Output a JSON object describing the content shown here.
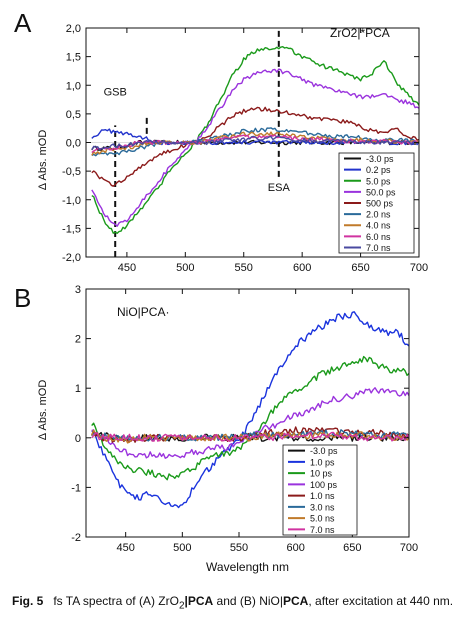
{
  "caption": {
    "fig_label": "Fig. 5",
    "pre": "fs TA spectra of (A) ZrO",
    "sub2": "2",
    "bar1": "|",
    "pca1": "PCA",
    "mid": " and (B) NiO|",
    "pca2": "PCA",
    "post": ", after excitation at 440 nm."
  },
  "chart_data": [
    {
      "type": "line",
      "panel_label": "A",
      "inset_label": "ZrO2|*PCA",
      "ylabel": "Δ Abs. mOD",
      "xlabel": "",
      "xlim": [
        415,
        700
      ],
      "ylim": [
        -2.0,
        2.0
      ],
      "xticks": [
        450,
        500,
        550,
        600,
        650,
        700
      ],
      "yticks": [
        -2.0,
        -1.5,
        -1.0,
        -0.5,
        0.0,
        0.5,
        1.0,
        1.5,
        2.0
      ],
      "ytick_labels": [
        "-2,0",
        "-1,5",
        "-1,0",
        "-0,5",
        "0,0",
        "0,5",
        "1,0",
        "1,5",
        "2,0"
      ],
      "annotations": [
        {
          "text": "GSB",
          "x": 440,
          "y": 0.82
        },
        {
          "text": "ESA",
          "x": 580,
          "y": -0.85
        }
      ],
      "markers": [
        {
          "x": 440,
          "from": -2.0,
          "to": 0.3,
          "style": "dashed"
        },
        {
          "x": 467,
          "from": 0.15,
          "to": 0.5,
          "style": "dashed"
        },
        {
          "x": 580,
          "from": -0.6,
          "to": 2.0,
          "style": "dashed"
        }
      ],
      "legend_position": "bottom-right",
      "x": [
        420,
        430,
        440,
        450,
        460,
        470,
        480,
        490,
        500,
        510,
        520,
        530,
        540,
        550,
        560,
        570,
        580,
        590,
        600,
        610,
        620,
        630,
        640,
        650,
        660,
        670,
        680,
        690,
        700
      ],
      "series": [
        {
          "name": "-3.0 ps",
          "color": "#111111",
          "values": [
            -0.1,
            -0.1,
            -0.1,
            -0.05,
            0,
            0,
            0,
            0,
            0,
            0,
            0,
            0,
            0,
            0,
            0,
            0,
            0,
            0,
            0,
            0,
            0,
            0,
            0,
            0,
            0,
            0,
            0,
            0,
            0
          ]
        },
        {
          "name": "0.2 ps",
          "color": "#2233cc",
          "values": [
            0.1,
            0.2,
            0.2,
            0.15,
            0.1,
            0.05,
            0,
            0,
            0,
            0,
            0,
            0,
            0,
            0,
            0,
            0,
            0,
            0,
            0,
            0,
            0,
            0,
            0,
            0,
            0,
            0,
            0,
            0,
            0
          ]
        },
        {
          "name": "5.0 ps",
          "color": "#1a9a1a",
          "values": [
            -0.9,
            -1.35,
            -1.6,
            -1.45,
            -1.2,
            -0.95,
            -0.7,
            -0.4,
            -0.2,
            0.05,
            0.35,
            0.75,
            1.15,
            1.45,
            1.6,
            1.65,
            1.65,
            1.62,
            1.5,
            1.4,
            1.32,
            1.25,
            1.18,
            1.1,
            1.2,
            1.45,
            1.05,
            0.85,
            0.65
          ]
        },
        {
          "name": "50.0 ps",
          "color": "#9a33dd",
          "values": [
            -0.8,
            -1.25,
            -1.45,
            -1.35,
            -1.1,
            -0.85,
            -0.6,
            -0.35,
            -0.15,
            0.05,
            0.3,
            0.6,
            0.9,
            1.1,
            1.2,
            1.25,
            1.25,
            1.2,
            1.1,
            1.0,
            0.95,
            0.9,
            0.85,
            0.8,
            0.8,
            0.85,
            0.75,
            0.7,
            0.6
          ]
        },
        {
          "name": "500 ps",
          "color": "#8b1a1a",
          "values": [
            -0.5,
            -0.65,
            -0.75,
            -0.6,
            -0.45,
            -0.3,
            -0.2,
            -0.12,
            -0.05,
            0.03,
            0.12,
            0.3,
            0.45,
            0.55,
            0.58,
            0.58,
            0.55,
            0.52,
            0.48,
            0.42,
            0.4,
            0.38,
            0.35,
            0.28,
            0.2,
            0.15,
            0.25,
            0.1,
            0.05
          ]
        },
        {
          "name": "2.0 ns",
          "color": "#2a6a9a",
          "values": [
            -0.2,
            -0.2,
            -0.2,
            -0.15,
            -0.1,
            -0.05,
            0,
            0,
            0,
            0.02,
            0.05,
            0.1,
            0.15,
            0.2,
            0.22,
            0.22,
            0.22,
            0.2,
            0.18,
            0.15,
            0.12,
            0.1,
            0.1,
            0.08,
            0.05,
            0.05,
            0.05,
            0.03,
            0.02
          ]
        },
        {
          "name": "4.0 ns",
          "color": "#c07a2a",
          "values": [
            -0.2,
            -0.15,
            -0.1,
            -0.1,
            -0.05,
            0,
            0,
            0,
            0,
            0,
            0.03,
            0.08,
            0.1,
            0.15,
            0.15,
            0.15,
            0.15,
            0.13,
            0.1,
            0.08,
            0.08,
            0.05,
            0.05,
            0.05,
            0.03,
            0.03,
            0.02,
            0.02,
            0
          ]
        },
        {
          "name": "6.0 ns",
          "color": "#d033a0",
          "values": [
            -0.15,
            -0.1,
            -0.1,
            -0.05,
            0,
            0,
            0,
            0,
            0,
            0,
            0.02,
            0.05,
            0.08,
            0.1,
            0.1,
            0.1,
            0.1,
            0.08,
            0.05,
            0.05,
            0.05,
            0.03,
            0.03,
            0.02,
            0.02,
            0.02,
            0,
            0,
            0
          ]
        },
        {
          "name": "7.0 ns",
          "color": "#4a4aa0",
          "values": [
            -0.1,
            -0.1,
            -0.05,
            -0.05,
            0,
            0,
            0,
            0,
            0,
            0,
            0,
            0.03,
            0.05,
            0.05,
            0.08,
            0.08,
            0.08,
            0.05,
            0.05,
            0.03,
            0.03,
            0.02,
            0.02,
            0,
            0,
            0,
            0,
            0,
            0
          ]
        }
      ]
    },
    {
      "type": "line",
      "panel_label": "B",
      "inset_label": "NiO|PCA·",
      "ylabel": "Δ Abs. mOD",
      "xlabel": "Wavelength nm",
      "xlim": [
        415,
        700
      ],
      "ylim": [
        -2,
        3
      ],
      "xticks": [
        450,
        500,
        550,
        600,
        650,
        700
      ],
      "yticks": [
        -2,
        -1,
        0,
        1,
        2,
        3
      ],
      "ytick_labels": [
        "-2",
        "-1",
        "0",
        "1",
        "2",
        "3"
      ],
      "legend_position": "bottom-right",
      "x": [
        420,
        430,
        440,
        450,
        460,
        470,
        480,
        490,
        500,
        510,
        520,
        530,
        540,
        550,
        560,
        570,
        580,
        590,
        600,
        610,
        620,
        630,
        640,
        650,
        660,
        670,
        680,
        690,
        700
      ],
      "series": [
        {
          "name": "-3.0 ps",
          "color": "#111111",
          "values": [
            0.1,
            0.05,
            0,
            0,
            0,
            0,
            0,
            0,
            0,
            0,
            0,
            0,
            0,
            0,
            0,
            0,
            0,
            0,
            0,
            0,
            0,
            0,
            0,
            0,
            0,
            0,
            0,
            0,
            0
          ]
        },
        {
          "name": "1.0 ps",
          "color": "#1a33dd",
          "values": [
            0.2,
            -0.3,
            -0.8,
            -1.1,
            -1.2,
            -1.15,
            -1.25,
            -1.4,
            -1.35,
            -1.0,
            -0.7,
            -0.45,
            -0.25,
            -0.05,
            0.3,
            0.75,
            1.2,
            1.55,
            1.85,
            2.05,
            2.2,
            2.35,
            2.45,
            2.5,
            2.35,
            2.2,
            2.1,
            2.15,
            1.85
          ]
        },
        {
          "name": "10 ps",
          "color": "#1a9a1a",
          "values": [
            0.3,
            -0.1,
            -0.4,
            -0.6,
            -0.65,
            -0.7,
            -0.75,
            -0.8,
            -0.75,
            -0.6,
            -0.45,
            -0.35,
            -0.3,
            -0.2,
            0,
            0.25,
            0.55,
            0.8,
            0.95,
            1.1,
            1.25,
            1.35,
            1.45,
            1.55,
            1.6,
            1.5,
            1.4,
            1.35,
            1.3
          ]
        },
        {
          "name": "100 ps",
          "color": "#9a33dd",
          "values": [
            0.2,
            0,
            -0.15,
            -0.3,
            -0.35,
            -0.35,
            -0.35,
            -0.4,
            -0.35,
            -0.3,
            -0.25,
            -0.2,
            -0.2,
            -0.1,
            0,
            0.15,
            0.25,
            0.35,
            0.45,
            0.55,
            0.65,
            0.75,
            0.8,
            0.85,
            0.9,
            0.95,
            0.95,
            0.9,
            0.85
          ]
        },
        {
          "name": "1.0 ns",
          "color": "#8b1a1a",
          "values": [
            0.1,
            0,
            -0.05,
            -0.05,
            -0.05,
            0,
            0,
            0,
            0,
            0,
            0,
            0,
            0,
            0,
            0.05,
            0.1,
            0.1,
            0.1,
            0.15,
            0.15,
            0.15,
            0.15,
            0.15,
            0.1,
            0.1,
            0.1,
            0.1,
            0.05,
            0.05
          ]
        },
        {
          "name": "3.0 ns",
          "color": "#2a6a9a",
          "values": [
            0.1,
            0.05,
            0,
            0,
            0,
            0,
            0,
            0,
            0,
            0,
            0,
            0,
            0,
            0,
            0.05,
            0.05,
            0.05,
            0.05,
            0.1,
            0.1,
            0.1,
            0.1,
            0.1,
            0.1,
            0.05,
            0.05,
            0.05,
            0.05,
            0.05
          ]
        },
        {
          "name": "5.0 ns",
          "color": "#c07a2a",
          "values": [
            0.1,
            0,
            0,
            -0.05,
            0,
            0,
            0,
            0,
            0,
            0,
            0,
            0,
            0,
            0,
            0,
            0.05,
            0.05,
            0.05,
            0.05,
            0.05,
            0.05,
            0.05,
            0.05,
            0.05,
            0.05,
            0,
            0,
            0,
            0
          ]
        },
        {
          "name": "7.0 ns",
          "color": "#d033a0",
          "values": [
            0.05,
            0,
            0,
            0,
            0,
            0,
            0,
            0,
            0,
            0,
            0,
            0,
            0,
            0,
            0,
            0,
            0,
            0.05,
            0.05,
            0.05,
            0.05,
            0.05,
            0.05,
            0,
            0,
            0,
            0,
            0,
            0
          ]
        }
      ]
    }
  ]
}
